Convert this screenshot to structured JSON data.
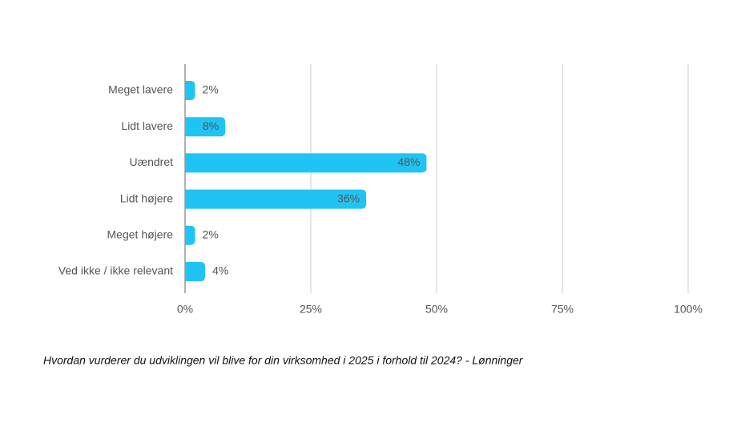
{
  "chart_data": {
    "type": "hbar",
    "categories": [
      "Meget lavere",
      "Lidt lavere",
      "Uændret",
      "Lidt højere",
      "Meget højere",
      "Ved ikke / ikke relevant"
    ],
    "values": [
      2,
      8,
      48,
      36,
      2,
      4
    ],
    "value_labels": [
      "2%",
      "8%",
      "48%",
      "36%",
      "2%",
      "4%"
    ],
    "color": "#1fc4f4",
    "xlim": [
      0,
      100
    ],
    "xticks": [
      {
        "value": 0,
        "label": "0%"
      },
      {
        "value": 25,
        "label": "25%"
      },
      {
        "value": 50,
        "label": "50%"
      },
      {
        "value": 75,
        "label": "75%"
      },
      {
        "value": 100,
        "label": "100%"
      }
    ],
    "grid": true,
    "caption": "Hvordan vurderer du udviklingen vil blive for din virksomhed i 2025 i forhold til 2024? - Lønninger"
  }
}
